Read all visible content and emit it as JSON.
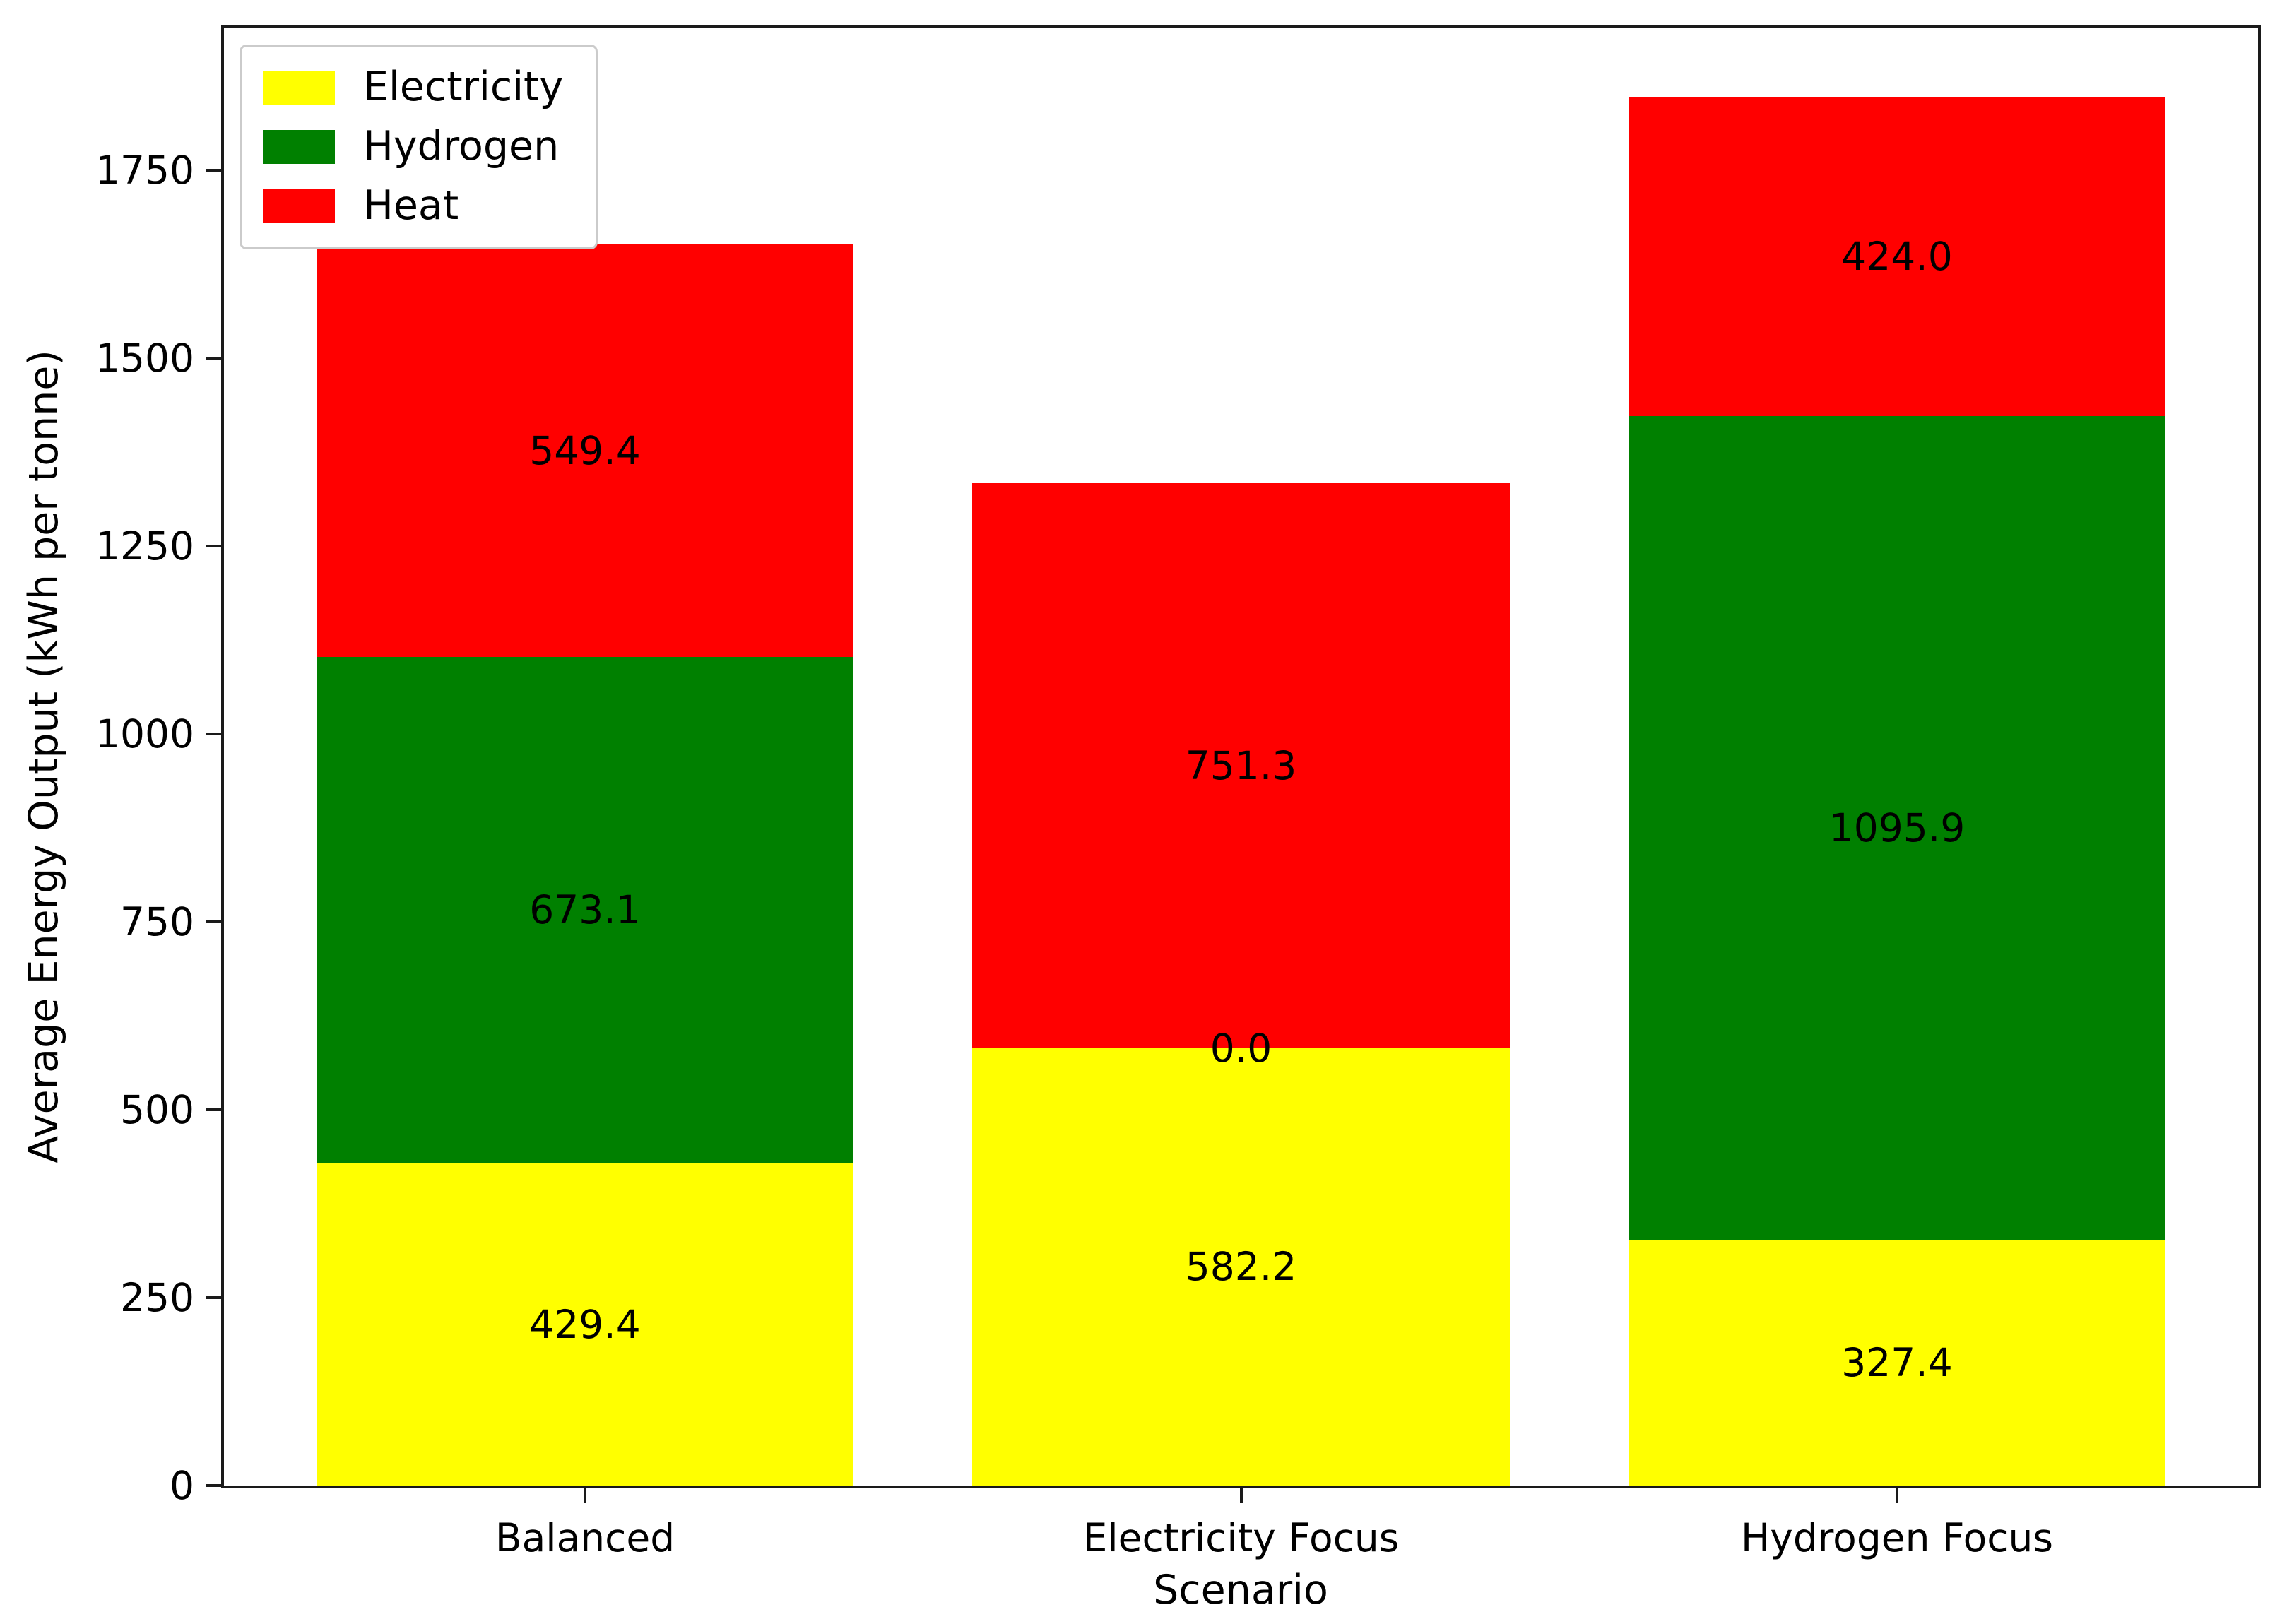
{
  "chart_data": {
    "type": "bar",
    "stacked": true,
    "categories": [
      "Balanced",
      "Electricity Focus",
      "Hydrogen Focus"
    ],
    "series": [
      {
        "name": "Electricity",
        "color": "#ffff00",
        "values": [
          429.4,
          582.2,
          327.4
        ]
      },
      {
        "name": "Hydrogen",
        "color": "#008000",
        "values": [
          673.1,
          0.0,
          1095.9
        ]
      },
      {
        "name": "Heat",
        "color": "#ff0000",
        "values": [
          549.4,
          751.3,
          424.0
        ]
      }
    ],
    "segment_value_labels": [
      [
        "429.4",
        "582.2",
        "327.4"
      ],
      [
        "673.1",
        "0.0",
        "1095.9"
      ],
      [
        "549.4",
        "751.3",
        "424.0"
      ]
    ],
    "xlabel": "Scenario",
    "ylabel": "Average Energy Output (kWh per tonne)",
    "ylim": [
      0,
      1940
    ],
    "yticks": [
      0,
      250,
      500,
      750,
      1000,
      1250,
      1500,
      1750
    ],
    "grid": false,
    "legend": {
      "position": "upper-left",
      "entries": [
        "Electricity",
        "Hydrogen",
        "Heat"
      ]
    },
    "axis_color": "#1a1a1a",
    "text_color": "#000000"
  }
}
